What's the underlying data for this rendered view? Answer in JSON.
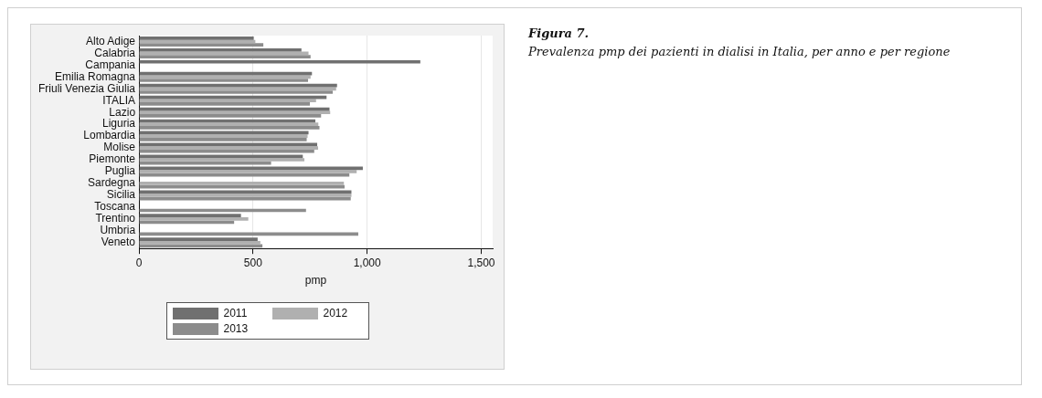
{
  "chart_data": {
    "type": "bar",
    "orientation": "horizontal",
    "title": "Figura 7.",
    "subtitle": "Prevalenza pmp dei pazienti in dialisi in Italia, per anno e per regione",
    "xlabel": "pmp",
    "categories": [
      "Alto Adige",
      "Calabria",
      "Campania",
      "Emilia Romagna",
      "Friuli Venezia Giulia",
      "ITALIA",
      "Lazio",
      "Liguria",
      "Lombardia",
      "Molise",
      "Piemonte",
      "Puglia",
      "Sardegna",
      "Sicilia",
      "Toscana",
      "Trentino",
      "Umbria",
      "Veneto"
    ],
    "series": [
      {
        "name": "2011",
        "color": "#707070",
        "values": [
          503,
          712,
          1233,
          758,
          868,
          822,
          835,
          773,
          743,
          781,
          718,
          981,
          null,
          931,
          null,
          447,
          null,
          520
        ]
      },
      {
        "name": "2012",
        "color": "#b0b0b0",
        "values": [
          510,
          743,
          null,
          752,
          864,
          776,
          838,
          786,
          739,
          785,
          725,
          954,
          898,
          931,
          null,
          479,
          null,
          532
        ]
      },
      {
        "name": "2013",
        "color": "#8c8c8c",
        "values": [
          545,
          752,
          null,
          741,
          849,
          749,
          798,
          791,
          735,
          768,
          579,
          922,
          901,
          928,
          732,
          417,
          961,
          541
        ]
      }
    ],
    "xlim": [
      0,
      1550
    ],
    "xticks": [
      0,
      500,
      {
        "value": 1000,
        "label": "1,000"
      },
      {
        "value": 1500,
        "label": "1,500"
      }
    ],
    "grid": "x",
    "legend": "bottom"
  }
}
